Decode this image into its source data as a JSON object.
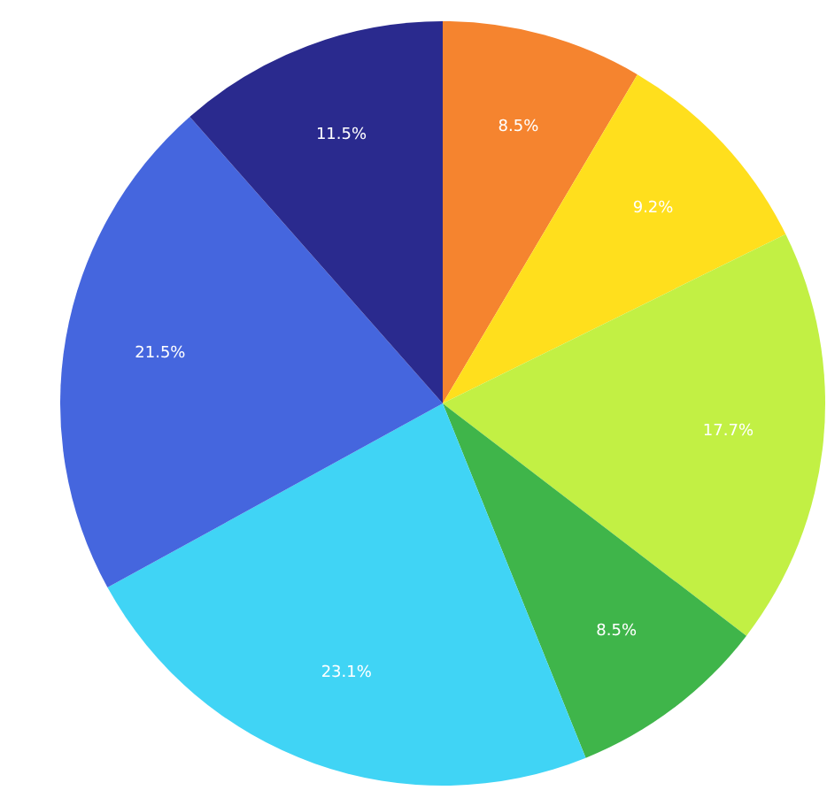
{
  "chart_data": {
    "type": "pie",
    "categories": [
      null,
      null,
      null,
      null,
      null,
      null,
      null
    ],
    "values": [
      8.5,
      9.2,
      17.7,
      8.5,
      23.1,
      21.5,
      11.5
    ],
    "value_labels": [
      "8.5%",
      "9.2%",
      "17.7%",
      "8.5%",
      "23.1%",
      "21.5%",
      "11.5%"
    ],
    "colors": [
      "#f5842f",
      "#ffdf1d",
      "#c2f044",
      "#3fb54a",
      "#40d4f5",
      "#4566de",
      "#2a2a8e"
    ]
  }
}
